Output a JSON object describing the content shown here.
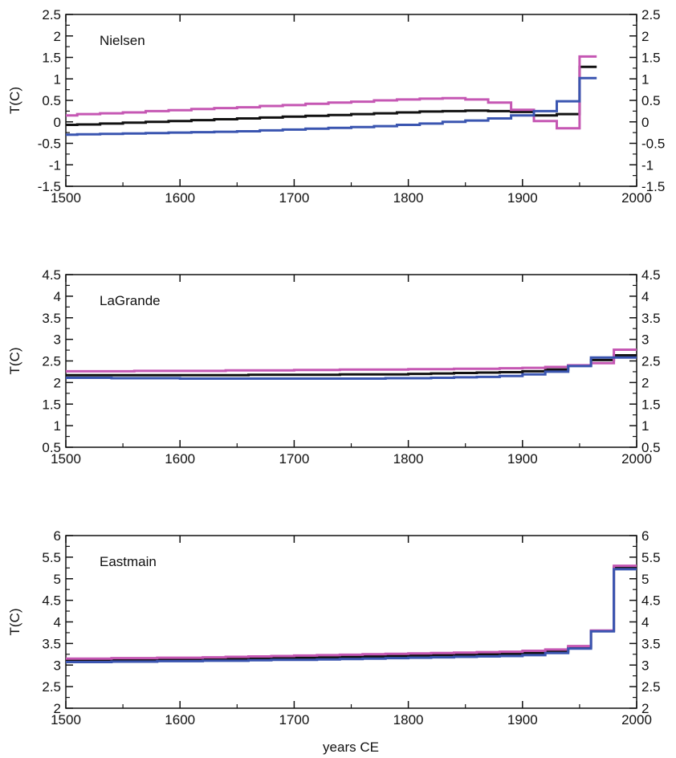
{
  "x_axis_label": "years CE",
  "colors": {
    "black": "#111111",
    "magenta": "#c557b3",
    "blue": "#3a55b0"
  },
  "chart_data": [
    {
      "type": "line",
      "title": "Nielsen",
      "ylabel": "T(C)",
      "xlim": [
        1500,
        2000
      ],
      "ylim": [
        -1.5,
        2.5
      ],
      "xticks": [
        1500,
        1600,
        1700,
        1800,
        1900,
        2000
      ],
      "yticks": [
        -1.5,
        -1,
        -0.5,
        0,
        0.5,
        1,
        1.5,
        2,
        2.5
      ],
      "ytick_labels": [
        "-1.5",
        "-1",
        "-0.5",
        "0",
        "0.5",
        "1",
        "1.5",
        "2",
        "2.5"
      ],
      "step_edges": [
        1500,
        1510,
        1530,
        1550,
        1570,
        1590,
        1610,
        1630,
        1650,
        1670,
        1690,
        1710,
        1730,
        1750,
        1770,
        1790,
        1810,
        1830,
        1850,
        1870,
        1890,
        1910,
        1930,
        1950,
        1965
      ],
      "series": [
        {
          "color": "#111111",
          "values": [
            -0.07,
            -0.06,
            -0.04,
            -0.02,
            0.0,
            0.02,
            0.04,
            0.06,
            0.08,
            0.1,
            0.12,
            0.14,
            0.16,
            0.18,
            0.2,
            0.22,
            0.24,
            0.25,
            0.26,
            0.25,
            0.23,
            0.15,
            0.18,
            1.28
          ]
        },
        {
          "color": "#c557b3",
          "values": [
            0.15,
            0.18,
            0.2,
            0.22,
            0.25,
            0.27,
            0.3,
            0.32,
            0.34,
            0.37,
            0.39,
            0.42,
            0.45,
            0.47,
            0.5,
            0.52,
            0.54,
            0.55,
            0.52,
            0.45,
            0.28,
            0.02,
            -0.15,
            1.52
          ]
        },
        {
          "color": "#3a55b0",
          "values": [
            -0.3,
            -0.29,
            -0.28,
            -0.27,
            -0.26,
            -0.25,
            -0.24,
            -0.23,
            -0.22,
            -0.2,
            -0.18,
            -0.16,
            -0.14,
            -0.12,
            -0.1,
            -0.07,
            -0.04,
            0.0,
            0.03,
            0.08,
            0.15,
            0.25,
            0.48,
            1.02
          ]
        }
      ]
    },
    {
      "type": "line",
      "title": "LaGrande",
      "ylabel": "T(C)",
      "xlim": [
        1500,
        2000
      ],
      "ylim": [
        0.5,
        4.5
      ],
      "xticks": [
        1500,
        1600,
        1700,
        1800,
        1900,
        2000
      ],
      "yticks": [
        0.5,
        1,
        1.5,
        2,
        2.5,
        3,
        3.5,
        4,
        4.5
      ],
      "ytick_labels": [
        "0.5",
        "1",
        "1.5",
        "2",
        "2.5",
        "3",
        "3.5",
        "4",
        "4.5"
      ],
      "step_edges": [
        1500,
        1520,
        1540,
        1560,
        1580,
        1600,
        1620,
        1640,
        1660,
        1680,
        1700,
        1720,
        1740,
        1760,
        1780,
        1800,
        1820,
        1840,
        1860,
        1880,
        1900,
        1920,
        1940,
        1960,
        1980,
        2000
      ],
      "series": [
        {
          "color": "#111111",
          "values": [
            2.17,
            2.17,
            2.17,
            2.17,
            2.17,
            2.17,
            2.17,
            2.17,
            2.18,
            2.18,
            2.18,
            2.18,
            2.19,
            2.19,
            2.19,
            2.2,
            2.21,
            2.22,
            2.23,
            2.24,
            2.26,
            2.3,
            2.39,
            2.52,
            2.63
          ]
        },
        {
          "color": "#c557b3",
          "values": [
            2.26,
            2.26,
            2.26,
            2.27,
            2.27,
            2.27,
            2.27,
            2.28,
            2.28,
            2.28,
            2.29,
            2.29,
            2.3,
            2.3,
            2.3,
            2.31,
            2.31,
            2.32,
            2.32,
            2.33,
            2.34,
            2.36,
            2.4,
            2.45,
            2.76
          ]
        },
        {
          "color": "#3a55b0",
          "values": [
            2.11,
            2.11,
            2.1,
            2.1,
            2.1,
            2.09,
            2.09,
            2.09,
            2.09,
            2.09,
            2.09,
            2.09,
            2.09,
            2.09,
            2.1,
            2.1,
            2.11,
            2.12,
            2.13,
            2.15,
            2.19,
            2.25,
            2.38,
            2.58,
            2.58
          ]
        }
      ]
    },
    {
      "type": "line",
      "title": "Eastmain",
      "ylabel": "T(C)",
      "xlim": [
        1500,
        2000
      ],
      "ylim": [
        2,
        6
      ],
      "xticks": [
        1500,
        1600,
        1700,
        1800,
        1900,
        2000
      ],
      "yticks": [
        2,
        2.5,
        3,
        3.5,
        4,
        4.5,
        5,
        5.5,
        6
      ],
      "ytick_labels": [
        "2",
        "2.5",
        "3",
        "3.5",
        "4",
        "4.5",
        "5",
        "5.5",
        "6"
      ],
      "step_edges": [
        1500,
        1520,
        1540,
        1560,
        1580,
        1600,
        1620,
        1640,
        1660,
        1680,
        1700,
        1720,
        1740,
        1760,
        1780,
        1800,
        1820,
        1840,
        1860,
        1880,
        1900,
        1920,
        1940,
        1960,
        1980,
        2000
      ],
      "series": [
        {
          "color": "#111111",
          "values": [
            3.1,
            3.11,
            3.11,
            3.12,
            3.12,
            3.13,
            3.13,
            3.14,
            3.15,
            3.16,
            3.17,
            3.18,
            3.19,
            3.2,
            3.21,
            3.22,
            3.23,
            3.24,
            3.25,
            3.26,
            3.28,
            3.32,
            3.41,
            3.79,
            5.26
          ]
        },
        {
          "color": "#c557b3",
          "values": [
            3.15,
            3.15,
            3.16,
            3.16,
            3.17,
            3.17,
            3.18,
            3.19,
            3.2,
            3.21,
            3.22,
            3.23,
            3.24,
            3.25,
            3.26,
            3.27,
            3.28,
            3.29,
            3.3,
            3.31,
            3.33,
            3.36,
            3.44,
            3.8,
            5.3
          ]
        },
        {
          "color": "#3a55b0",
          "values": [
            3.07,
            3.07,
            3.08,
            3.08,
            3.09,
            3.09,
            3.1,
            3.1,
            3.11,
            3.12,
            3.12,
            3.13,
            3.14,
            3.15,
            3.16,
            3.17,
            3.18,
            3.19,
            3.2,
            3.21,
            3.23,
            3.28,
            3.38,
            3.78,
            5.22
          ]
        }
      ]
    }
  ]
}
